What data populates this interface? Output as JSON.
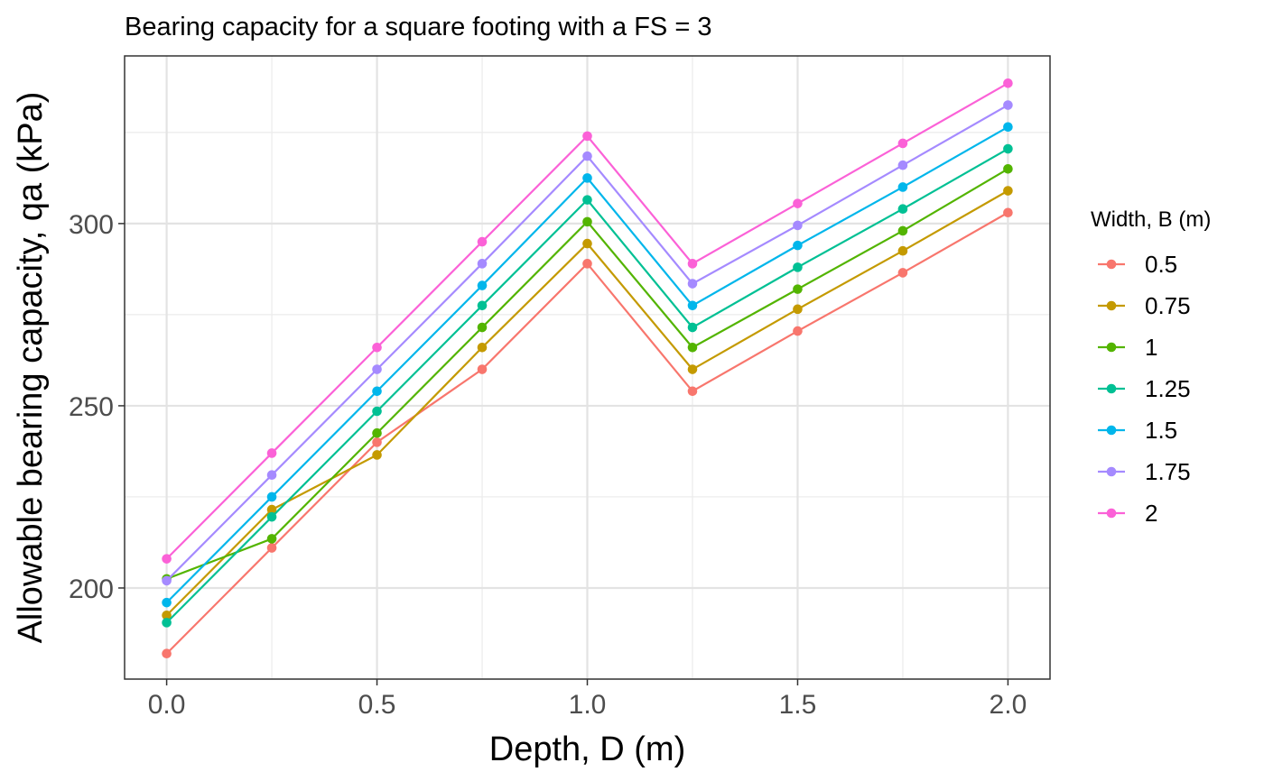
{
  "chart_data": {
    "type": "line",
    "title": "Bearing capacity for a square footing with a FS = 3",
    "xlabel": "Depth, D (m)",
    "ylabel": "Allowable bearing capacity, qa (kPa)",
    "x": [
      0,
      0.25,
      0.5,
      0.75,
      1.0,
      1.25,
      1.5,
      1.75,
      2.0
    ],
    "xlim": [
      -0.1,
      2.1
    ],
    "ylim": [
      175,
      346
    ],
    "xticks": [
      0,
      0.5,
      1.0,
      1.5,
      2.0
    ],
    "xtick_labels": [
      "0.0",
      "0.5",
      "1.0",
      "1.5",
      "2.0"
    ],
    "yticks": [
      200,
      250,
      300
    ],
    "ytick_labels": [
      "200",
      "250",
      "300"
    ],
    "grid": true,
    "legend": {
      "title": "Width, B (m)",
      "position": "right"
    },
    "series": [
      {
        "name": "0.5",
        "color": "#F8766D",
        "values": [
          182,
          211,
          240,
          260,
          289,
          254,
          270.5,
          286.5,
          303
        ]
      },
      {
        "name": "0.75",
        "color": "#C49A00",
        "values": [
          192.5,
          221.5,
          236.5,
          266,
          294.5,
          260,
          276.5,
          292.5,
          309
        ]
      },
      {
        "name": "1",
        "color": "#53B400",
        "values": [
          202.5,
          213.5,
          242.5,
          271.5,
          300.5,
          266,
          282,
          298,
          315
        ]
      },
      {
        "name": "1.25",
        "color": "#00C094",
        "values": [
          190.5,
          219.5,
          248.5,
          277.5,
          306.5,
          271.5,
          288,
          304,
          320.5
        ]
      },
      {
        "name": "1.5",
        "color": "#00B6EB",
        "values": [
          196,
          225,
          254,
          283,
          312.5,
          277.5,
          294,
          310,
          326.5
        ]
      },
      {
        "name": "1.75",
        "color": "#A58AFF",
        "values": [
          202,
          231,
          260,
          289,
          318.5,
          283.5,
          299.5,
          316,
          332.5
        ]
      },
      {
        "name": "2",
        "color": "#FB61D7",
        "values": [
          208,
          237,
          266,
          295,
          324,
          289,
          305.5,
          322,
          338.5
        ]
      }
    ]
  }
}
